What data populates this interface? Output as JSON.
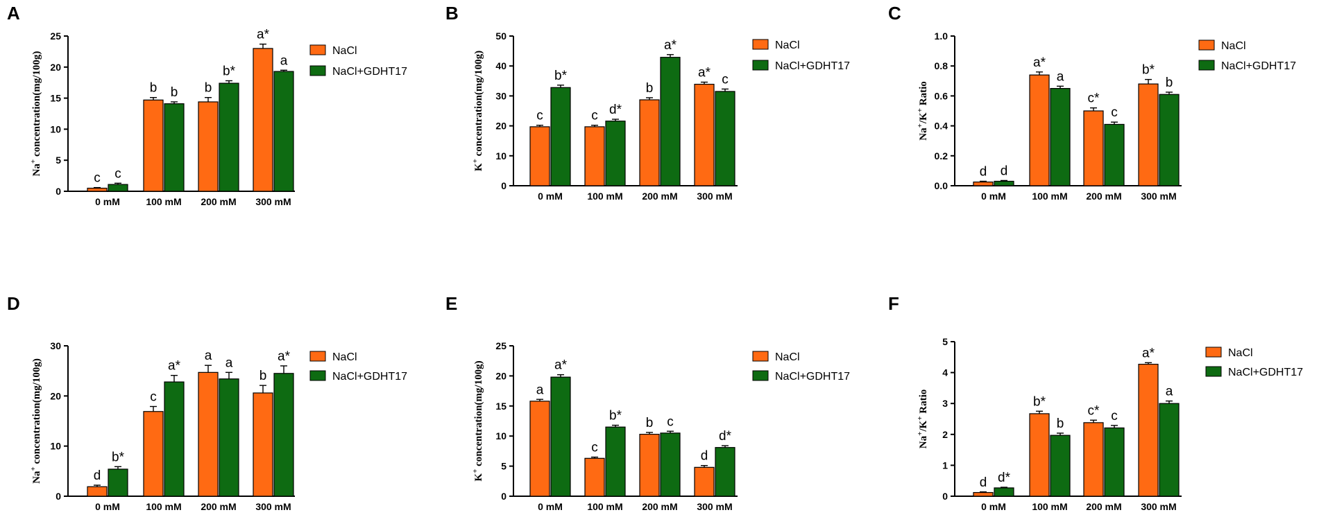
{
  "colors": {
    "nacl": "#ff6a13",
    "gdht": "#0e6b12",
    "axis": "#000000"
  },
  "legend": {
    "nacl": "NaCl",
    "nacl_gdht": "NaCl+GDHT17"
  },
  "chart_data": [
    {
      "type": "bar",
      "panel": "A",
      "ylabel": {
        "ion": "Na",
        "sup": "+",
        "rest": " concentration(mg/100g)"
      },
      "categories": [
        "0 mM",
        "100 mM",
        "200 mM",
        "300 mM"
      ],
      "ylim": [
        0,
        25
      ],
      "yticks": [
        "0",
        "5",
        "10",
        "15",
        "20",
        "25"
      ],
      "series": [
        {
          "name": "NaCl",
          "values": [
            0.5,
            14.7,
            14.4,
            23.0
          ],
          "errors": [
            0.1,
            0.4,
            0.7,
            0.7
          ],
          "labels": [
            "c",
            "b",
            "b",
            "a*"
          ]
        },
        {
          "name": "NaCl+GDHT17",
          "values": [
            1.1,
            14.1,
            17.4,
            19.3
          ],
          "errors": [
            0.2,
            0.3,
            0.4,
            0.2
          ],
          "labels": [
            "c",
            "b",
            "b*",
            "a"
          ]
        }
      ]
    },
    {
      "type": "bar",
      "panel": "B",
      "ylabel": {
        "ion": "K",
        "sup": "+",
        "rest": " concentration(mg/100g)"
      },
      "categories": [
        "0 mM",
        "100 mM",
        "200 mM",
        "300 mM"
      ],
      "ylim": [
        0,
        50
      ],
      "yticks": [
        "0",
        "10",
        "20",
        "30",
        "40",
        "50"
      ],
      "series": [
        {
          "name": "NaCl",
          "values": [
            19.7,
            19.7,
            28.7,
            33.9
          ],
          "errors": [
            0.5,
            0.5,
            0.7,
            0.7
          ],
          "labels": [
            "c",
            "c",
            "b",
            "a*"
          ]
        },
        {
          "name": "NaCl+GDHT17",
          "values": [
            32.8,
            21.6,
            42.9,
            31.5
          ],
          "errors": [
            0.8,
            0.6,
            0.9,
            0.8
          ],
          "labels": [
            "b*",
            "d*",
            "a*",
            "c"
          ]
        }
      ]
    },
    {
      "type": "bar",
      "panel": "C",
      "ylabel": {
        "ion": "Na",
        "sup": "+",
        "mid": "/K",
        "sup2": "+",
        "rest": " Ratio"
      },
      "categories": [
        "0 mM",
        "100 mM",
        "200 mM",
        "300 mM"
      ],
      "ylim": [
        0,
        1.0
      ],
      "yticks": [
        "0.0",
        "0.2",
        "0.4",
        "0.6",
        "0.8",
        "1.0"
      ],
      "series": [
        {
          "name": "NaCl",
          "values": [
            0.025,
            0.74,
            0.5,
            0.68
          ],
          "errors": [
            0.005,
            0.02,
            0.02,
            0.03
          ],
          "labels": [
            "d",
            "a*",
            "c*",
            "b*"
          ]
        },
        {
          "name": "NaCl+GDHT17",
          "values": [
            0.03,
            0.65,
            0.41,
            0.61
          ],
          "errors": [
            0.005,
            0.015,
            0.015,
            0.015
          ],
          "labels": [
            "d",
            "a",
            "c",
            "b"
          ]
        }
      ]
    },
    {
      "type": "bar",
      "panel": "D",
      "ylabel": {
        "ion": "Na",
        "sup": "+",
        "rest": " concentration(mg/100g)"
      },
      "categories": [
        "0 mM",
        "100 mM",
        "200 mM",
        "300 mM"
      ],
      "ylim": [
        0,
        30
      ],
      "yticks": [
        "0",
        "10",
        "20",
        "30"
      ],
      "series": [
        {
          "name": "NaCl",
          "values": [
            1.9,
            16.9,
            24.7,
            20.6
          ],
          "errors": [
            0.3,
            1.0,
            1.4,
            1.5
          ],
          "labels": [
            "d",
            "c",
            "a",
            "b"
          ]
        },
        {
          "name": "NaCl+GDHT17",
          "values": [
            5.4,
            22.8,
            23.4,
            24.5
          ],
          "errors": [
            0.5,
            1.3,
            1.3,
            1.5
          ],
          "labels": [
            "b*",
            "a*",
            "a",
            "a*"
          ]
        }
      ]
    },
    {
      "type": "bar",
      "panel": "E",
      "ylabel": {
        "ion": "K",
        "sup": "+",
        "rest": " concentration(mg/100g)"
      },
      "categories": [
        "0 mM",
        "100 mM",
        "200 mM",
        "300 mM"
      ],
      "ylim": [
        0,
        25
      ],
      "yticks": [
        "0",
        "5",
        "10",
        "15",
        "20",
        "25"
      ],
      "series": [
        {
          "name": "NaCl",
          "values": [
            15.8,
            6.3,
            10.3,
            4.8
          ],
          "errors": [
            0.3,
            0.2,
            0.3,
            0.3
          ],
          "labels": [
            "a",
            "c",
            "b",
            "d"
          ]
        },
        {
          "name": "NaCl+GDHT17",
          "values": [
            19.8,
            11.5,
            10.5,
            8.1
          ],
          "errors": [
            0.4,
            0.3,
            0.3,
            0.3
          ],
          "labels": [
            "a*",
            "b*",
            "c",
            "d*"
          ]
        }
      ]
    },
    {
      "type": "bar",
      "panel": "F",
      "ylabel": {
        "ion": "Na",
        "sup": "+",
        "mid": "/K",
        "sup2": "+",
        "rest": " Ratio"
      },
      "categories": [
        "0 mM",
        "100 mM",
        "200 mM",
        "300 mM"
      ],
      "ylim": [
        0,
        5
      ],
      "yticks": [
        "0",
        "1",
        "2",
        "3",
        "4",
        "5"
      ],
      "series": [
        {
          "name": "NaCl",
          "values": [
            0.12,
            2.67,
            2.38,
            4.27
          ],
          "errors": [
            0.02,
            0.08,
            0.08,
            0.05
          ],
          "labels": [
            "d",
            "b*",
            "c*",
            "a*"
          ]
        },
        {
          "name": "NaCl+GDHT17",
          "values": [
            0.27,
            1.97,
            2.21,
            3.0
          ],
          "errors": [
            0.02,
            0.07,
            0.08,
            0.08
          ],
          "labels": [
            "d*",
            "b",
            "c",
            "a"
          ]
        }
      ]
    }
  ]
}
